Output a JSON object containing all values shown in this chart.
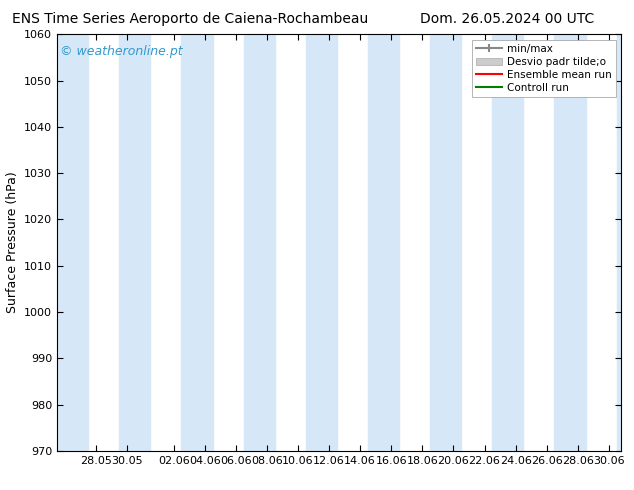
{
  "title_left": "ENS Time Series Aeroporto de Caiena-Rochambeau",
  "title_right": "Dom. 26.05.2024 00 UTC",
  "ylabel": "Surface Pressure (hPa)",
  "ylim": [
    970,
    1060
  ],
  "yticks": [
    970,
    980,
    990,
    1000,
    1010,
    1020,
    1030,
    1040,
    1050,
    1060
  ],
  "xtick_labels": [
    "28.05",
    "30.05",
    "02.06",
    "04.06",
    "06.06",
    "08.06",
    "10.06",
    "12.06",
    "14.06",
    "16.06",
    "18.06",
    "20.06",
    "22.06",
    "24.06",
    "26.06",
    "28.06",
    "30.06"
  ],
  "shaded_color": "#d6e8f7",
  "watermark": "© weatheronline.pt",
  "watermark_color": "#3399cc",
  "legend_items": [
    {
      "label": "min/max",
      "color": "#999999",
      "style": "minmax"
    },
    {
      "label": "Desvio padr tilde;o",
      "color": "#cccccc",
      "style": "fill"
    },
    {
      "label": "Ensemble mean run",
      "color": "#ff0000",
      "style": "line"
    },
    {
      "label": "Controll run",
      "color": "#008000",
      "style": "line"
    }
  ],
  "background_color": "#ffffff",
  "title_fontsize": 10,
  "axis_label_fontsize": 9,
  "tick_fontsize": 8,
  "watermark_fontsize": 9,
  "legend_fontsize": 7.5
}
